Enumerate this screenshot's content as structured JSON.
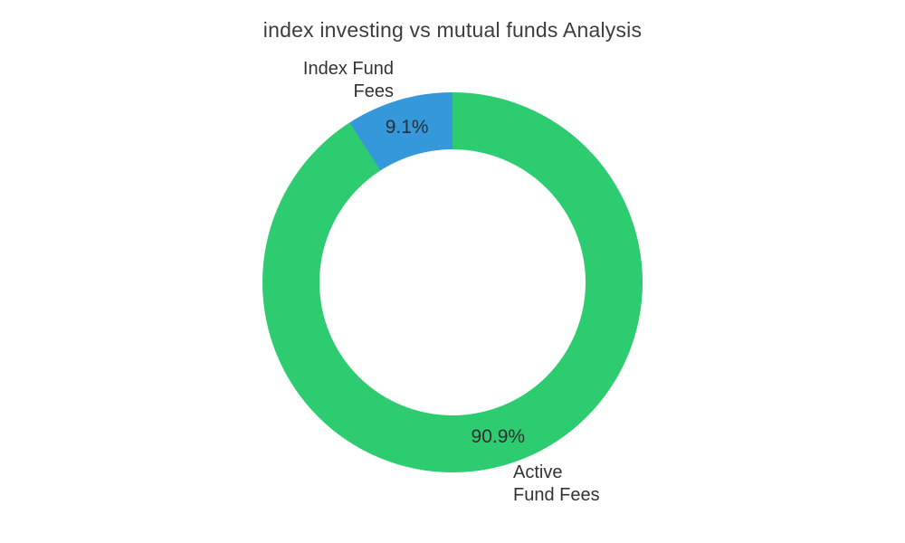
{
  "chart_data": {
    "type": "pie",
    "subtype": "donut",
    "title": "index investing vs mutual funds Analysis",
    "hole": 0.7,
    "start_angle_deg": 0,
    "direction": "clockwise",
    "legend": "none",
    "labels_position": "outside",
    "percent_labels_position": "inside",
    "background_color": "#ffffff",
    "slices": [
      {
        "label": "Active Fund Fees",
        "label_lines": [
          "Active",
          "Fund Fees"
        ],
        "value": 90.9,
        "pct_label": "90.9%",
        "color": "#2ecc71"
      },
      {
        "label": "Index Fund Fees",
        "label_lines": [
          "Index Fund",
          "Fees"
        ],
        "value": 9.1,
        "pct_label": "9.1%",
        "color": "#3498db"
      }
    ]
  }
}
